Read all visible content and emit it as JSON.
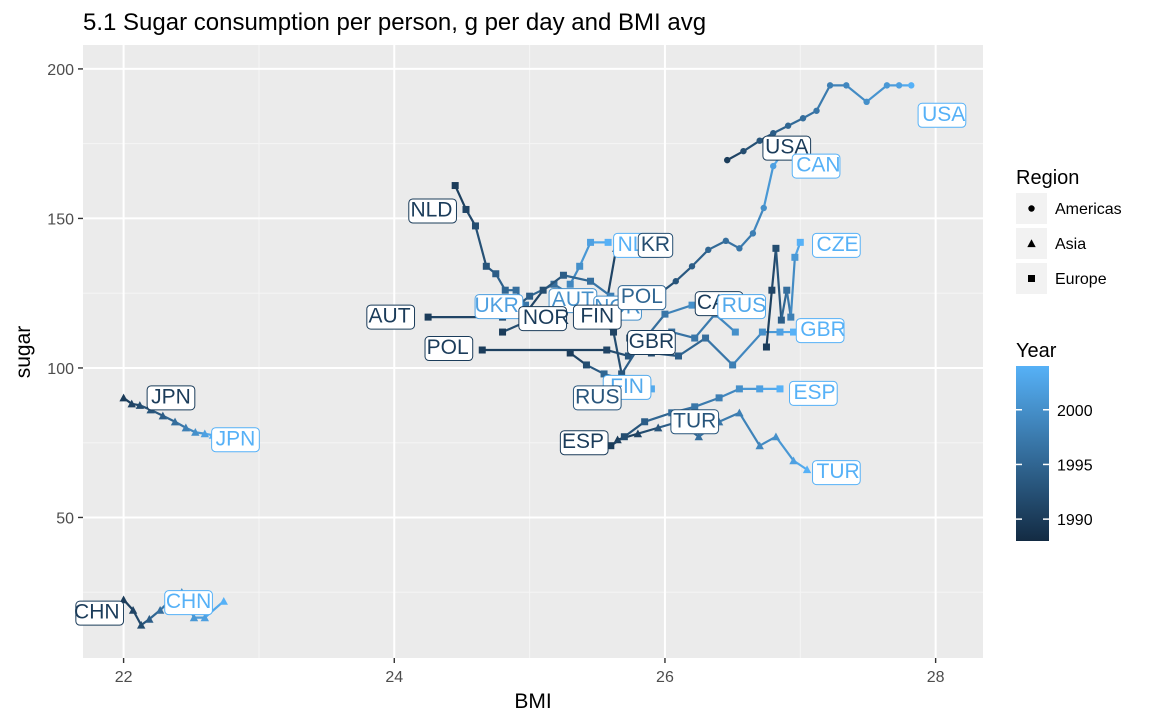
{
  "chart_data": {
    "type": "line",
    "title": "5.1 Sugar consumption per person, g per day and BMI avg",
    "xlabel": "BMI",
    "ylabel": "sugar",
    "xlim": [
      21.7,
      28.35
    ],
    "ylim": [
      3,
      208
    ],
    "xticks": [
      22,
      24,
      26,
      28
    ],
    "yticks": [
      50,
      100,
      150,
      200
    ],
    "grid": true,
    "legend_position": "right",
    "legends": {
      "region": {
        "title": "Region",
        "entries": [
          {
            "label": "Americas",
            "shape": "circle"
          },
          {
            "label": "Asia",
            "shape": "triangle"
          },
          {
            "label": "Europe",
            "shape": "square"
          }
        ]
      },
      "year": {
        "title": "Year",
        "range": [
          1988,
          2004
        ],
        "ticks": [
          1990,
          1995,
          2000
        ],
        "color_low": "#132b43",
        "color_high": "#56b1f7"
      }
    },
    "series": [
      {
        "name": "USA",
        "region": "Americas",
        "x": [
          26.46,
          26.58,
          26.7,
          26.8,
          26.91,
          27.02,
          27.12,
          27.22,
          27.34,
          27.49,
          27.64,
          27.73,
          27.82
        ],
        "y": [
          169.5,
          172.5,
          176,
          178.5,
          181,
          183.5,
          186,
          194.5,
          194.5,
          189,
          194.5,
          194.5,
          194.5
        ],
        "year": [
          1990,
          1992,
          1993,
          1994,
          1995,
          1996,
          1997,
          1998,
          1999,
          2000,
          2001,
          2002,
          2004
        ],
        "labels": [
          {
            "text": "USA",
            "year_index": 0,
            "x": 26.9,
            "y": 173.5,
            "anchor": "middle"
          },
          {
            "text": "USA",
            "year_index": 12,
            "x": 27.9,
            "y": 184.5,
            "anchor": "start"
          }
        ]
      },
      {
        "name": "CAN",
        "region": "Americas",
        "x": [
          25.65,
          25.8,
          25.95,
          26.08,
          26.2,
          26.32,
          26.45,
          26.55,
          26.65,
          26.73,
          26.8,
          26.88
        ],
        "y": [
          118,
          121,
          124.5,
          129,
          134,
          139.5,
          142.5,
          140,
          145,
          153.5,
          167.5,
          172.5
        ],
        "year": [
          1990,
          1991,
          1992,
          1993,
          1994,
          1995,
          1996,
          1997,
          1998,
          2000,
          2002,
          2004
        ],
        "labels": [
          {
            "text": "CAN",
            "year_index": 0,
            "x": 26.4,
            "y": 121.5,
            "anchor": "middle"
          },
          {
            "text": "CAN",
            "year_index": 11,
            "x": 26.97,
            "y": 167.5,
            "anchor": "start"
          }
        ]
      },
      {
        "name": "JPN",
        "region": "Asia",
        "x": [
          22.0,
          22.06,
          22.12,
          22.2,
          22.29,
          22.38,
          22.46,
          22.53,
          22.6,
          22.66
        ],
        "y": [
          90,
          88,
          87.5,
          86,
          84,
          82,
          80,
          78.5,
          78,
          77.5
        ],
        "year": [
          1990,
          1991,
          1992,
          1993,
          1994,
          1996,
          1998,
          2000,
          2002,
          2004
        ],
        "labels": [
          {
            "text": "JPN",
            "year_index": 0,
            "x": 22.35,
            "y": 90,
            "anchor": "middle"
          },
          {
            "text": "JPN",
            "year_index": 9,
            "x": 22.68,
            "y": 76,
            "anchor": "start"
          }
        ]
      },
      {
        "name": "CHN",
        "region": "Asia",
        "x": [
          22.0,
          22.07,
          22.13,
          22.19,
          22.27,
          22.35,
          22.43,
          22.52,
          22.6,
          22.74
        ],
        "y": [
          22.5,
          19,
          14,
          16,
          19,
          22.5,
          25,
          16.5,
          16.5,
          22
        ],
        "year": [
          1990,
          1991,
          1992,
          1994,
          1996,
          1998,
          2000,
          2001,
          2002,
          2004
        ],
        "labels": [
          {
            "text": "CHN",
            "year_index": 0,
            "x": 21.97,
            "y": 18,
            "anchor": "end"
          },
          {
            "text": "CHN",
            "year_index": 9,
            "x": 22.48,
            "y": 21.5,
            "anchor": "middle"
          }
        ]
      },
      {
        "name": "TUR",
        "region": "Asia",
        "x": [
          25.65,
          25.8,
          25.95,
          26.1,
          26.25,
          26.4,
          26.55,
          26.7,
          26.82,
          26.95,
          27.05
        ],
        "y": [
          76,
          78,
          80,
          82,
          77,
          82,
          85,
          74,
          77,
          69,
          66
        ],
        "year": [
          1990,
          1991,
          1993,
          1995,
          1996,
          1997,
          1998,
          1999,
          2000,
          2002,
          2004
        ],
        "labels": [
          {
            "text": "TUR",
            "year_index": 2,
            "x": 26.22,
            "y": 82,
            "anchor": "middle"
          },
          {
            "text": "TUR",
            "year_index": 10,
            "x": 27.12,
            "y": 65,
            "anchor": "start"
          }
        ]
      },
      {
        "name": "NLD",
        "region": "Europe",
        "x": [
          24.45,
          24.53,
          24.6,
          24.68,
          24.75,
          24.82,
          24.9,
          24.97,
          25.05
        ],
        "y": [
          161,
          153,
          147.5,
          134,
          131.5,
          126,
          126,
          121,
          117
        ],
        "year": [
          1990,
          1991,
          1992,
          1993,
          1994,
          1995,
          1996,
          1997,
          1998
        ],
        "labels": [
          {
            "text": "NLD",
            "year_index": 0,
            "x": 24.43,
            "y": 152.5,
            "anchor": "end"
          }
        ]
      },
      {
        "name": "NLD",
        "region": "Europe",
        "x": [
          25.3,
          25.37,
          25.45,
          25.58
        ],
        "y": [
          128,
          134,
          142,
          142
        ],
        "year": [
          1999,
          2000,
          2002,
          2004
        ],
        "labels": [
          {
            "text": "NLD",
            "year_index": 3,
            "x": 25.65,
            "y": 141,
            "anchor": "start"
          }
        ]
      },
      {
        "name": "KOR",
        "region": "Asia",
        "x": [
          25.55,
          25.64
        ],
        "y": [
          117,
          140
        ],
        "year": [
          1990,
          1992
        ],
        "labels": [
          {
            "text": "KR",
            "year_index": 1,
            "x": 25.93,
            "y": 141,
            "anchor": "middle"
          }
        ]
      },
      {
        "name": "AUT",
        "region": "Europe",
        "x": [
          24.25,
          24.8,
          25.0,
          25.18,
          25.32,
          25.45
        ],
        "y": [
          117,
          117,
          124,
          128,
          124,
          122
        ],
        "year": [
          1990,
          1992,
          1994,
          1996,
          1998,
          2000
        ],
        "labels": [
          {
            "text": "AUT",
            "year_index": 0,
            "x": 24.12,
            "y": 117,
            "anchor": "end"
          },
          {
            "text": "AUT",
            "year_index": 5,
            "x": 25.32,
            "y": 122.5,
            "anchor": "middle"
          }
        ]
      },
      {
        "name": "UKR",
        "region": "Europe",
        "x": [
          24.8,
          25.05,
          25.25,
          25.42
        ],
        "y": [
          112,
          117,
          120,
          122
        ],
        "year": [
          1990,
          1994,
          1998,
          2002
        ],
        "labels": [
          {
            "text": "UKR",
            "year_index": 3,
            "x": 24.92,
            "y": 120.5,
            "anchor": "end"
          }
        ]
      },
      {
        "name": "NOR",
        "region": "Europe",
        "x": [
          24.95,
          25.1,
          25.25,
          25.45,
          25.6,
          25.7
        ],
        "y": [
          117,
          126,
          131,
          129,
          124,
          120
        ],
        "year": [
          1990,
          1992,
          1994,
          1996,
          1998,
          2000
        ],
        "labels": [
          {
            "text": "NOR",
            "year_index": 0,
            "x": 24.95,
            "y": 116.5,
            "anchor": "start"
          },
          {
            "text": "NOR",
            "year_index": 5,
            "x": 25.65,
            "y": 120,
            "anchor": "middle"
          }
        ]
      },
      {
        "name": "FIN",
        "region": "Europe",
        "x": [
          25.3,
          25.42,
          25.55,
          25.7,
          25.9
        ],
        "y": [
          105,
          101,
          98,
          96,
          93
        ],
        "year": [
          1990,
          1992,
          1995,
          1998,
          2003
        ],
        "labels": [
          {
            "text": "FIN",
            "year_index": 0,
            "x": 25.5,
            "y": 117,
            "anchor": "middle"
          },
          {
            "text": "FIN",
            "year_index": 4,
            "x": 25.72,
            "y": 93.5,
            "anchor": "middle"
          }
        ]
      },
      {
        "name": "POL",
        "region": "Europe",
        "x": [
          24.65,
          25.57,
          25.73,
          25.9,
          26.05,
          26.22,
          26.37,
          26.52
        ],
        "y": [
          106,
          106,
          104,
          108,
          112,
          110,
          118,
          112
        ],
        "year": [
          1990,
          1991,
          1993,
          1995,
          1996,
          1997,
          1998,
          2000
        ],
        "labels": [
          {
            "text": "POL",
            "year_index": 0,
            "x": 24.55,
            "y": 106.5,
            "anchor": "end"
          },
          {
            "text": "POL",
            "year_index": 3,
            "x": 25.83,
            "y": 123.5,
            "anchor": "middle"
          }
        ]
      },
      {
        "name": "RUS",
        "region": "Europe",
        "x": [
          25.55,
          25.62,
          25.68,
          25.82,
          26.0,
          26.2,
          26.35
        ],
        "y": [
          115,
          112,
          98,
          108,
          118,
          121,
          121
        ],
        "year": [
          1990,
          1991,
          1993,
          1995,
          1997,
          2000,
          2003
        ],
        "labels": [
          {
            "text": "RUS",
            "year_index": 2,
            "x": 25.5,
            "y": 90,
            "anchor": "middle"
          },
          {
            "text": "RUS",
            "year_index": 6,
            "x": 26.42,
            "y": 120.5,
            "anchor": "start"
          }
        ]
      },
      {
        "name": "GBR",
        "region": "Europe",
        "x": [
          25.74,
          25.9,
          26.1,
          26.3,
          26.5,
          26.72,
          26.85,
          26.95
        ],
        "y": [
          110,
          105,
          104,
          110,
          101,
          112,
          112,
          112
        ],
        "year": [
          1990,
          1992,
          1994,
          1996,
          1998,
          2000,
          2002,
          2004
        ],
        "labels": [
          {
            "text": "GBR",
            "year_index": 0,
            "x": 25.9,
            "y": 108.5,
            "anchor": "middle"
          },
          {
            "text": "GBR",
            "year_index": 7,
            "x": 27.0,
            "y": 112.5,
            "anchor": "start"
          }
        ]
      },
      {
        "name": "CZE",
        "region": "Europe",
        "x": [
          26.75,
          26.79,
          26.82,
          26.86,
          26.9,
          26.93,
          26.96,
          27.0
        ],
        "y": [
          107,
          126,
          140,
          116,
          126,
          117,
          137,
          142
        ],
        "year": [
          1990,
          1991,
          1992,
          1994,
          1996,
          1998,
          2001,
          2004
        ],
        "labels": [
          {
            "text": "CZE",
            "year_index": 7,
            "x": 27.12,
            "y": 141,
            "anchor": "start"
          }
        ]
      },
      {
        "name": "ESP",
        "region": "Europe",
        "x": [
          25.6,
          25.7,
          25.85,
          26.05,
          26.22,
          26.4,
          26.55,
          26.7,
          26.85
        ],
        "y": [
          74,
          77,
          82,
          85,
          87,
          90,
          93,
          93,
          93
        ],
        "year": [
          1990,
          1992,
          1994,
          1996,
          1997,
          1998,
          2000,
          2002,
          2004
        ],
        "labels": [
          {
            "text": "ESP",
            "year_index": 0,
            "x": 25.55,
            "y": 75,
            "anchor": "end"
          },
          {
            "text": "ESP",
            "year_index": 8,
            "x": 26.95,
            "y": 91.5,
            "anchor": "start"
          }
        ]
      }
    ]
  }
}
